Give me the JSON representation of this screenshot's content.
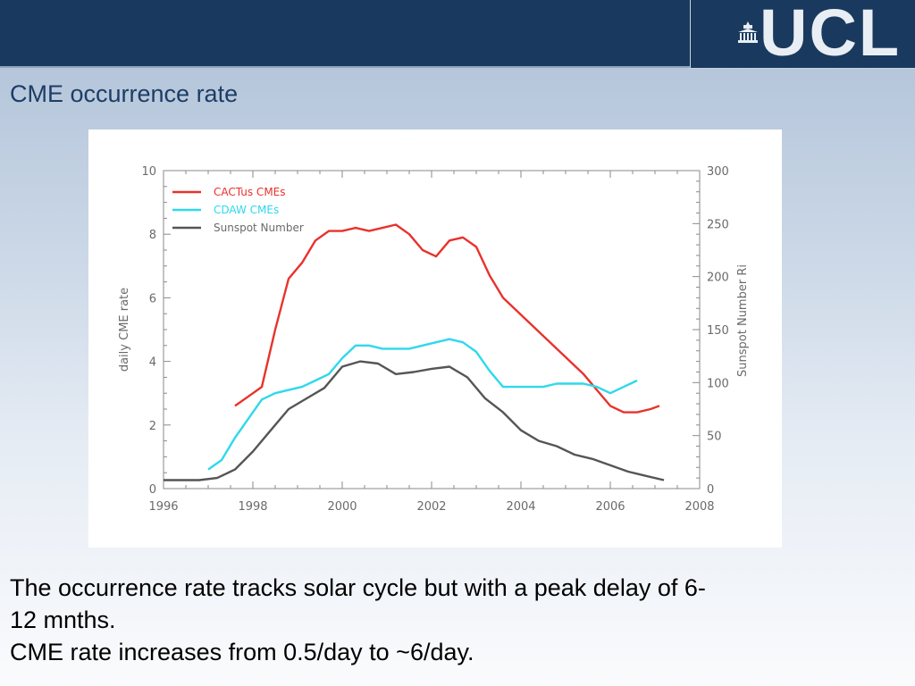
{
  "header": {
    "logo_text": "UCL",
    "logo_icon": "portico-icon",
    "bar_color": "#193a5e"
  },
  "slide": {
    "title": "CME occurrence rate",
    "body_lines": [
      "The occurrence rate tracks solar cycle but with a peak delay of 6-",
      "12 mnths.",
      "CME rate increases from 0.5/day to ~6/day."
    ]
  },
  "chart_data": {
    "type": "line",
    "xlabel": "",
    "ylabel": "daily CME rate",
    "y2label": "Sunspot Number Ri",
    "xlim": [
      1996,
      2008
    ],
    "ylim": [
      0,
      10
    ],
    "y2lim": [
      0,
      300
    ],
    "xticks": [
      "1996",
      "1998",
      "2000",
      "2002",
      "2004",
      "2006",
      "2008"
    ],
    "yticks": [
      "0",
      "2",
      "4",
      "6",
      "8",
      "10"
    ],
    "y2ticks": [
      "0",
      "50",
      "100",
      "150",
      "200",
      "250",
      "300"
    ],
    "legend_position": "top-left",
    "colors": {
      "cactus": "#e8322c",
      "cdaw": "#2fd8ec",
      "sunspot": "#555555"
    },
    "series": [
      {
        "name": "CACTus CMEs",
        "axis": "left",
        "x": [
          1997.6,
          1997.9,
          1998.2,
          1998.5,
          1998.8,
          1999.1,
          1999.4,
          1999.7,
          2000.0,
          2000.3,
          2000.6,
          2000.9,
          2001.2,
          2001.5,
          2001.8,
          2002.1,
          2002.4,
          2002.7,
          2003.0,
          2003.3,
          2003.6,
          2003.9,
          2004.2,
          2004.5,
          2004.8,
          2005.1,
          2005.4,
          2005.7,
          2006.0,
          2006.3,
          2006.6,
          2006.9,
          2007.1
        ],
        "values": [
          2.6,
          2.9,
          3.2,
          5.0,
          6.6,
          7.1,
          7.8,
          8.1,
          8.1,
          8.2,
          8.1,
          8.2,
          8.3,
          8.0,
          7.5,
          7.3,
          7.8,
          7.9,
          7.6,
          6.7,
          6.0,
          5.6,
          5.2,
          4.8,
          4.4,
          4.0,
          3.6,
          3.1,
          2.6,
          2.4,
          2.4,
          2.5,
          2.6
        ]
      },
      {
        "name": "CDAW CMEs",
        "axis": "left",
        "x": [
          1997.0,
          1997.3,
          1997.6,
          1997.9,
          1998.2,
          1998.5,
          1998.8,
          1999.1,
          1999.4,
          1999.7,
          2000.0,
          2000.3,
          2000.6,
          2000.9,
          2001.2,
          2001.5,
          2001.8,
          2002.1,
          2002.4,
          2002.7,
          2003.0,
          2003.3,
          2003.6,
          2003.9,
          2004.2,
          2004.5,
          2004.8,
          2005.1,
          2005.4,
          2005.7,
          2006.0,
          2006.3,
          2006.6
        ],
        "values": [
          0.6,
          0.9,
          1.6,
          2.2,
          2.8,
          3.0,
          3.1,
          3.2,
          3.4,
          3.6,
          4.1,
          4.5,
          4.5,
          4.4,
          4.4,
          4.4,
          4.5,
          4.6,
          4.7,
          4.6,
          4.3,
          3.7,
          3.2,
          3.2,
          3.2,
          3.2,
          3.3,
          3.3,
          3.3,
          3.2,
          3.0,
          3.2,
          3.4
        ]
      },
      {
        "name": "Sunspot Number",
        "axis": "right",
        "x": [
          1996.0,
          1996.4,
          1996.8,
          1997.2,
          1997.6,
          1998.0,
          1998.4,
          1998.8,
          1999.2,
          1999.6,
          2000.0,
          2000.4,
          2000.8,
          2001.2,
          2001.6,
          2002.0,
          2002.4,
          2002.8,
          2003.2,
          2003.6,
          2004.0,
          2004.4,
          2004.8,
          2005.2,
          2005.6,
          2006.0,
          2006.4,
          2006.8,
          2007.2
        ],
        "values": [
          8,
          8,
          8,
          10,
          18,
          35,
          55,
          75,
          85,
          95,
          115,
          120,
          118,
          108,
          110,
          113,
          115,
          105,
          85,
          72,
          55,
          45,
          40,
          32,
          28,
          22,
          16,
          12,
          8
        ]
      }
    ]
  }
}
